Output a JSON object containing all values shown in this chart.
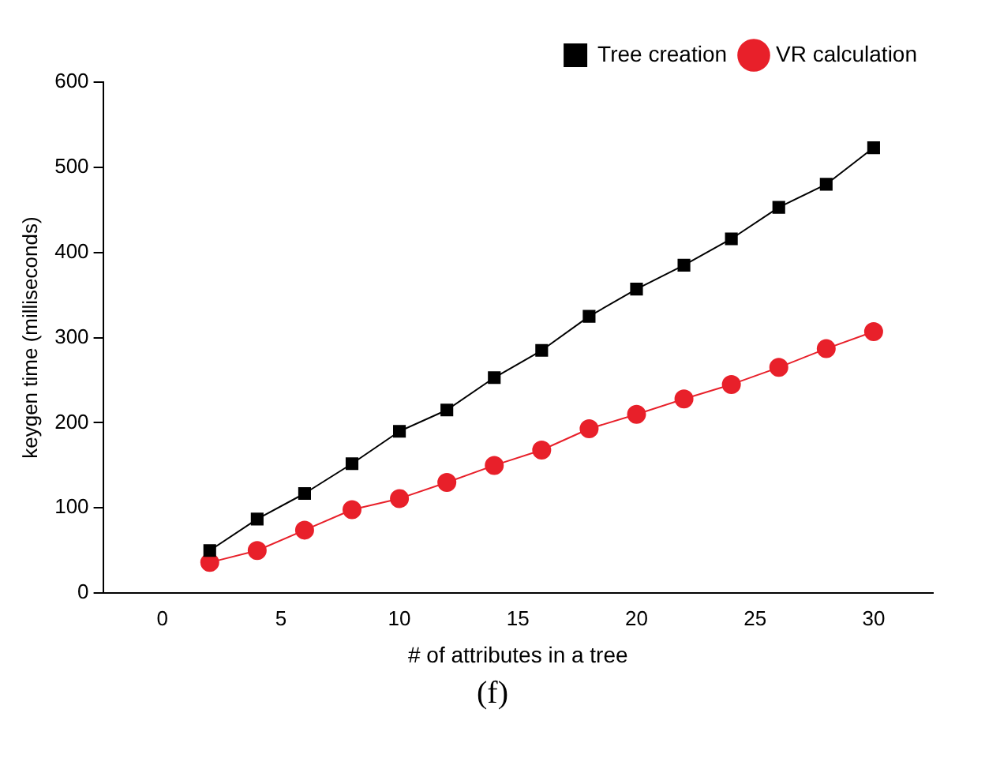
{
  "chart_data": {
    "type": "line",
    "xlabel": "# of attributes in a tree",
    "ylabel": "keygen time (milliseconds)",
    "annotations": [
      "(f)"
    ],
    "x": [
      2,
      4,
      6,
      8,
      10,
      12,
      14,
      16,
      18,
      20,
      22,
      24,
      26,
      28,
      30
    ],
    "xlim": [
      -2.5,
      32.5
    ],
    "xticks": [
      0,
      5,
      10,
      15,
      20,
      25,
      30
    ],
    "ylim": [
      0,
      600
    ],
    "yticks": [
      0,
      100,
      200,
      300,
      400,
      500,
      600
    ],
    "grid": false,
    "legend": "top right",
    "series": [
      {
        "name": "Tree creation",
        "color": "#000000",
        "marker": "square",
        "values": [
          50,
          87,
          117,
          152,
          190,
          215,
          253,
          285,
          325,
          357,
          385,
          416,
          453,
          480,
          523
        ]
      },
      {
        "name": "VR calculation",
        "color": "#e8202a",
        "marker": "circle",
        "values": [
          36,
          50,
          74,
          98,
          111,
          130,
          150,
          168,
          193,
          210,
          228,
          245,
          265,
          287,
          307
        ]
      }
    ]
  }
}
